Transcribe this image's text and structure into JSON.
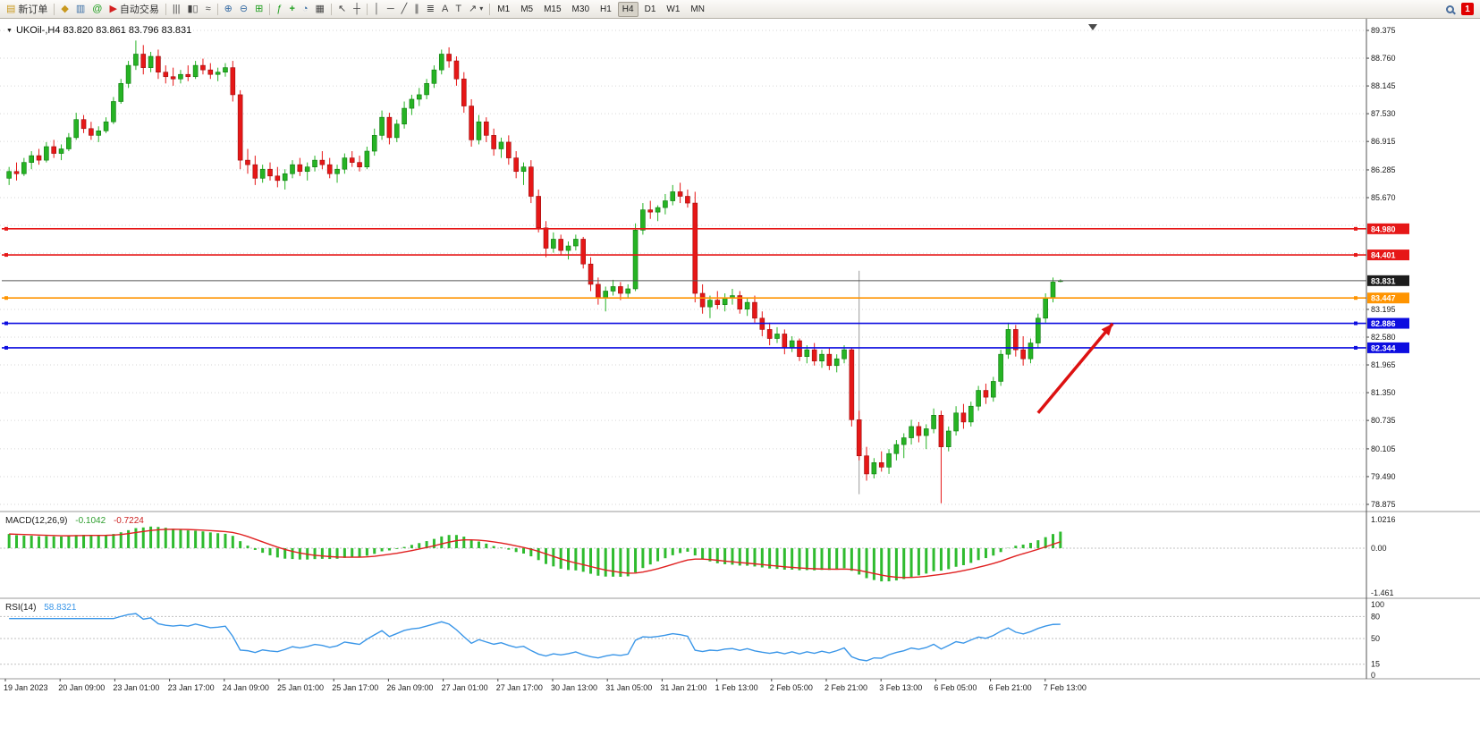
{
  "toolbar": {
    "new_order_label": "新订单",
    "autotrade_label": "自动交易",
    "timeframes": [
      "M1",
      "M5",
      "M15",
      "M30",
      "H1",
      "H4",
      "D1",
      "W1",
      "MN"
    ],
    "active_timeframe": "H4",
    "notification_count": "1",
    "icons": {
      "new_order": "▤",
      "symbols": "◆",
      "market_depth": "▥",
      "community": "@",
      "autotrade": "▶",
      "chart_bars": "|||",
      "chart_candles": "▮▯",
      "chart_line": "≈",
      "zoom_in": "⊕",
      "zoom_out": "⊖",
      "tile_windows": "⊞",
      "indicators": "ƒ",
      "add_indicator": "+",
      "period_clock": "◔",
      "templates": "▦",
      "cursor": "↖",
      "crosshair": "┼",
      "vertical_line": "│",
      "horizontal_line": "─",
      "trendline": "╱",
      "channel": "∥",
      "fibonacci": "≣",
      "text": "A",
      "text_label": "T",
      "shapes": "↗",
      "dropdown_caret": "▾"
    }
  },
  "icons": {
    "header_collapse": "▼"
  },
  "chart_data": {
    "type": "candlestick",
    "symbol": "UKOil-",
    "timeframe": "H4",
    "ohlc_header": "UKOil-,H4  83.820 83.861 83.796 83.831",
    "colors": {
      "bull": "#26b324",
      "bear": "#e61717",
      "bull_border": "#0c7a0c",
      "bear_border": "#9c0d0d",
      "macd": "#2fbb2f",
      "signal": "#e02020",
      "rsi": "#3a96e8",
      "arrow": "#dd1111"
    },
    "price_axis_labels": [
      "89.375",
      "88.760",
      "88.145",
      "87.530",
      "86.915",
      "86.285",
      "85.670",
      "83.195",
      "82.580",
      "81.965",
      "81.350",
      "80.735",
      "80.105",
      "79.490",
      "78.875"
    ],
    "hidden_gridlines": [
      85.055,
      84.44
    ],
    "candles": [
      [
        86.1,
        86.35,
        85.95,
        86.25
      ],
      [
        86.25,
        86.45,
        86.05,
        86.2
      ],
      [
        86.2,
        86.55,
        86.15,
        86.45
      ],
      [
        86.45,
        86.7,
        86.3,
        86.6
      ],
      [
        86.6,
        86.75,
        86.4,
        86.5
      ],
      [
        86.5,
        86.9,
        86.45,
        86.8
      ],
      [
        86.8,
        86.95,
        86.55,
        86.65
      ],
      [
        86.65,
        86.85,
        86.5,
        86.75
      ],
      [
        86.75,
        87.1,
        86.7,
        87.0
      ],
      [
        87.0,
        87.55,
        86.95,
        87.4
      ],
      [
        87.4,
        87.5,
        87.1,
        87.2
      ],
      [
        87.2,
        87.35,
        86.95,
        87.05
      ],
      [
        87.05,
        87.25,
        86.9,
        87.15
      ],
      [
        87.15,
        87.45,
        87.1,
        87.35
      ],
      [
        87.35,
        87.9,
        87.3,
        87.8
      ],
      [
        87.8,
        88.3,
        87.75,
        88.2
      ],
      [
        88.2,
        88.7,
        88.1,
        88.6
      ],
      [
        88.6,
        89.15,
        88.5,
        88.85
      ],
      [
        88.85,
        89.05,
        88.4,
        88.55
      ],
      [
        88.55,
        88.9,
        88.45,
        88.8
      ],
      [
        88.8,
        88.95,
        88.3,
        88.45
      ],
      [
        88.45,
        88.6,
        88.2,
        88.35
      ],
      [
        88.35,
        88.55,
        88.15,
        88.3
      ],
      [
        88.3,
        88.5,
        88.2,
        88.4
      ],
      [
        88.4,
        88.6,
        88.25,
        88.35
      ],
      [
        88.35,
        88.7,
        88.3,
        88.6
      ],
      [
        88.6,
        88.75,
        88.4,
        88.5
      ],
      [
        88.5,
        88.65,
        88.3,
        88.4
      ],
      [
        88.4,
        88.55,
        88.25,
        88.45
      ],
      [
        88.45,
        88.65,
        88.35,
        88.55
      ],
      [
        88.55,
        88.7,
        87.8,
        87.95
      ],
      [
        87.95,
        88.05,
        86.3,
        86.5
      ],
      [
        86.5,
        86.75,
        86.2,
        86.4
      ],
      [
        86.4,
        86.6,
        85.95,
        86.1
      ],
      [
        86.1,
        86.4,
        86.0,
        86.3
      ],
      [
        86.3,
        86.45,
        86.05,
        86.15
      ],
      [
        86.15,
        86.35,
        85.9,
        86.05
      ],
      [
        86.05,
        86.3,
        85.85,
        86.2
      ],
      [
        86.2,
        86.5,
        86.1,
        86.4
      ],
      [
        86.4,
        86.55,
        86.15,
        86.25
      ],
      [
        86.25,
        86.45,
        86.05,
        86.35
      ],
      [
        86.35,
        86.6,
        86.25,
        86.5
      ],
      [
        86.5,
        86.7,
        86.3,
        86.4
      ],
      [
        86.4,
        86.55,
        86.1,
        86.2
      ],
      [
        86.2,
        86.4,
        86.0,
        86.3
      ],
      [
        86.3,
        86.65,
        86.2,
        86.55
      ],
      [
        86.55,
        86.7,
        86.35,
        86.45
      ],
      [
        86.45,
        86.6,
        86.25,
        86.35
      ],
      [
        86.35,
        86.8,
        86.3,
        86.7
      ],
      [
        86.7,
        87.2,
        86.6,
        87.05
      ],
      [
        87.05,
        87.6,
        86.95,
        87.45
      ],
      [
        87.45,
        87.55,
        86.85,
        87.0
      ],
      [
        87.0,
        87.4,
        86.9,
        87.3
      ],
      [
        87.3,
        87.8,
        87.2,
        87.65
      ],
      [
        87.65,
        87.95,
        87.5,
        87.85
      ],
      [
        87.85,
        88.1,
        87.7,
        87.95
      ],
      [
        87.95,
        88.3,
        87.85,
        88.2
      ],
      [
        88.2,
        88.6,
        88.1,
        88.5
      ],
      [
        88.5,
        88.95,
        88.4,
        88.85
      ],
      [
        88.85,
        89.0,
        88.55,
        88.7
      ],
      [
        88.7,
        88.8,
        88.15,
        88.3
      ],
      [
        88.3,
        88.45,
        87.55,
        87.7
      ],
      [
        87.7,
        87.85,
        86.8,
        86.95
      ],
      [
        86.95,
        87.5,
        86.85,
        87.35
      ],
      [
        87.35,
        87.45,
        86.9,
        87.05
      ],
      [
        87.05,
        87.2,
        86.6,
        86.75
      ],
      [
        86.75,
        87.0,
        86.55,
        86.9
      ],
      [
        86.9,
        87.05,
        86.4,
        86.55
      ],
      [
        86.55,
        86.7,
        86.1,
        86.25
      ],
      [
        86.25,
        86.45,
        85.95,
        86.35
      ],
      [
        86.35,
        86.5,
        85.55,
        85.7
      ],
      [
        85.7,
        85.85,
        84.9,
        85.0
      ],
      [
        85.0,
        85.15,
        84.35,
        84.55
      ],
      [
        84.55,
        84.9,
        84.45,
        84.75
      ],
      [
        84.75,
        84.85,
        84.4,
        84.5
      ],
      [
        84.5,
        84.7,
        84.3,
        84.6
      ],
      [
        84.6,
        84.85,
        84.5,
        84.75
      ],
      [
        84.75,
        84.8,
        84.1,
        84.2
      ],
      [
        84.2,
        84.35,
        83.6,
        83.75
      ],
      [
        83.75,
        83.9,
        83.3,
        83.45
      ],
      [
        83.45,
        83.7,
        83.15,
        83.6
      ],
      [
        83.6,
        83.85,
        83.5,
        83.7
      ],
      [
        83.7,
        83.8,
        83.4,
        83.55
      ],
      [
        83.55,
        83.75,
        83.45,
        83.65
      ],
      [
        83.65,
        85.1,
        83.6,
        84.95
      ],
      [
        84.95,
        85.55,
        84.85,
        85.4
      ],
      [
        85.4,
        85.6,
        85.2,
        85.35
      ],
      [
        85.35,
        85.5,
        85.15,
        85.45
      ],
      [
        85.45,
        85.75,
        85.3,
        85.6
      ],
      [
        85.6,
        85.95,
        85.5,
        85.8
      ],
      [
        85.8,
        86.0,
        85.55,
        85.7
      ],
      [
        85.7,
        85.85,
        85.45,
        85.55
      ],
      [
        85.55,
        85.8,
        83.35,
        83.55
      ],
      [
        83.55,
        83.75,
        83.1,
        83.25
      ],
      [
        83.25,
        83.5,
        83.0,
        83.4
      ],
      [
        83.4,
        83.6,
        83.2,
        83.3
      ],
      [
        83.3,
        83.55,
        83.15,
        83.45
      ],
      [
        83.45,
        83.65,
        83.3,
        83.5
      ],
      [
        83.5,
        83.6,
        83.1,
        83.2
      ],
      [
        83.2,
        83.45,
        83.05,
        83.35
      ],
      [
        83.35,
        83.5,
        82.9,
        83.0
      ],
      [
        83.0,
        83.15,
        82.6,
        82.75
      ],
      [
        82.75,
        82.9,
        82.4,
        82.55
      ],
      [
        82.55,
        82.8,
        82.45,
        82.65
      ],
      [
        82.65,
        82.75,
        82.2,
        82.35
      ],
      [
        82.35,
        82.6,
        82.25,
        82.5
      ],
      [
        82.5,
        82.55,
        82.05,
        82.15
      ],
      [
        82.15,
        82.4,
        82.0,
        82.3
      ],
      [
        82.3,
        82.45,
        81.95,
        82.05
      ],
      [
        82.05,
        82.3,
        81.9,
        82.2
      ],
      [
        82.2,
        82.35,
        81.85,
        81.95
      ],
      [
        81.95,
        82.2,
        81.8,
        82.1
      ],
      [
        82.1,
        82.4,
        82.0,
        82.3
      ],
      [
        82.3,
        82.35,
        80.6,
        80.75
      ],
      [
        80.75,
        80.95,
        79.85,
        79.95
      ],
      [
        79.95,
        80.15,
        79.4,
        79.55
      ],
      [
        79.55,
        79.9,
        79.45,
        79.8
      ],
      [
        79.8,
        80.05,
        79.6,
        79.7
      ],
      [
        79.7,
        80.1,
        79.55,
        80.0
      ],
      [
        80.0,
        80.3,
        79.85,
        80.2
      ],
      [
        80.2,
        80.45,
        79.9,
        80.35
      ],
      [
        80.35,
        80.75,
        80.2,
        80.6
      ],
      [
        80.6,
        80.7,
        80.25,
        80.4
      ],
      [
        80.4,
        80.65,
        80.1,
        80.55
      ],
      [
        80.55,
        81.0,
        80.45,
        80.85
      ],
      [
        80.85,
        80.95,
        78.9,
        80.15
      ],
      [
        80.15,
        80.6,
        80.05,
        80.5
      ],
      [
        80.5,
        81.05,
        80.4,
        80.9
      ],
      [
        80.9,
        81.1,
        80.55,
        80.7
      ],
      [
        80.7,
        81.15,
        80.6,
        81.05
      ],
      [
        81.05,
        81.5,
        80.95,
        81.4
      ],
      [
        81.4,
        81.55,
        81.1,
        81.25
      ],
      [
        81.25,
        81.7,
        81.15,
        81.6
      ],
      [
        81.6,
        82.3,
        81.5,
        82.2
      ],
      [
        82.2,
        82.9,
        82.1,
        82.75
      ],
      [
        82.75,
        82.85,
        82.15,
        82.3
      ],
      [
        82.3,
        82.6,
        81.95,
        82.1
      ],
      [
        82.1,
        82.55,
        82.0,
        82.45
      ],
      [
        82.45,
        83.1,
        82.35,
        83.0
      ],
      [
        83.0,
        83.55,
        82.9,
        83.45
      ],
      [
        83.45,
        83.9,
        83.35,
        83.8
      ],
      [
        83.82,
        83.861,
        83.796,
        83.831
      ]
    ],
    "time_labels": [
      "19 Jan 2023",
      "20 Jan 09:00",
      "23 Jan 01:00",
      "23 Jan 17:00",
      "24 Jan 09:00",
      "25 Jan 01:00",
      "25 Jan 17:00",
      "26 Jan 09:00",
      "27 Jan 01:00",
      "27 Jan 17:00",
      "30 Jan 13:00",
      "31 Jan 05:00",
      "31 Jan 21:00",
      "1 Feb 13:00",
      "2 Feb 05:00",
      "2 Feb 21:00",
      "3 Feb 13:00",
      "6 Feb 05:00",
      "6 Feb 21:00",
      "7 Feb 13:00"
    ],
    "hlines": [
      {
        "price": 84.98,
        "label": "84.980",
        "color": "#e61717",
        "badge": "#e61717"
      },
      {
        "price": 84.401,
        "label": "84.401",
        "color": "#e61717",
        "badge": "#e61717"
      },
      {
        "price": 83.831,
        "label": "83.831",
        "color": "#555555",
        "badge": "#1c1c1c",
        "style": "bid"
      },
      {
        "price": 83.447,
        "label": "83.447",
        "color": "#ff9400",
        "badge": "#ff9400"
      },
      {
        "price": 82.886,
        "label": "82.886",
        "color": "#0d0de0",
        "badge": "#0d0de0"
      },
      {
        "price": 82.344,
        "label": "82.344",
        "color": "#0d0de0",
        "badge": "#0d0de0"
      }
    ],
    "arrow": {
      "from_index": 138,
      "from_price": 80.9,
      "to_index": 148,
      "to_price": 82.88,
      "color": "#dd1111"
    },
    "vseparator": {
      "index": 114,
      "from_price": 84.05,
      "to_price": 79.1
    },
    "indicators": {
      "macd": {
        "label": "MACD(12,26,9)",
        "value_main": "-0.1042",
        "value_signal": "-0.7224",
        "fast": 12,
        "slow": 26,
        "signal_period": 9,
        "axis_top": "1.0216",
        "axis_zero": "0.00",
        "axis_bottom": "-1.461"
      },
      "rsi": {
        "label": "RSI(14)",
        "value": "58.8321",
        "period": 14,
        "levels": [
          80,
          50,
          15
        ],
        "axis_labels": [
          "100",
          "80",
          "50",
          "15",
          "0"
        ]
      }
    }
  }
}
